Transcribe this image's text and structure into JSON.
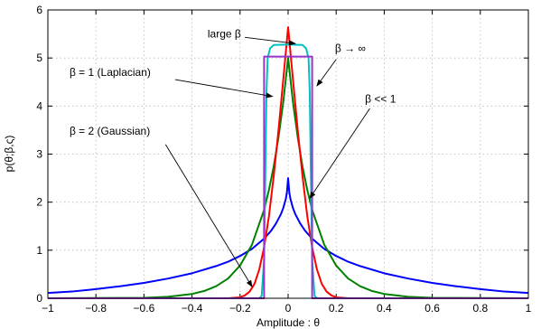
{
  "chart_data": {
    "type": "line",
    "xlabel": "Amplitude : θ",
    "ylabel": "p(θ;β,ς)",
    "xlim": [
      -1,
      1
    ],
    "ylim": [
      0,
      6
    ],
    "grid": true,
    "xticks": [
      -1,
      -0.8,
      -0.6,
      -0.4,
      -0.2,
      0,
      0.2,
      0.4,
      0.6,
      0.8,
      1
    ],
    "xtick_labels": [
      "−1",
      "−0.8",
      "−0.6",
      "−0.4",
      "−0.2",
      "0",
      "0.2",
      "0.4",
      "0.6",
      "0.8",
      "1"
    ],
    "yticks": [
      0,
      1,
      2,
      3,
      4,
      5,
      6
    ],
    "ytick_labels": [
      "0",
      "1",
      "2",
      "3",
      "4",
      "5",
      "6"
    ],
    "series": [
      {
        "color": "#0000ff",
        "points": [
          [
            -1,
            0.11
          ],
          [
            -0.9,
            0.14
          ],
          [
            -0.8,
            0.19
          ],
          [
            -0.7,
            0.25
          ],
          [
            -0.6,
            0.32
          ],
          [
            -0.5,
            0.41
          ],
          [
            -0.4,
            0.52
          ],
          [
            -0.3,
            0.67
          ],
          [
            -0.25,
            0.76
          ],
          [
            -0.2,
            0.88
          ],
          [
            -0.15,
            1.03
          ],
          [
            -0.1,
            1.24
          ],
          [
            -0.07,
            1.41
          ],
          [
            -0.05,
            1.56
          ],
          [
            -0.03,
            1.75
          ],
          [
            -0.02,
            1.88
          ],
          [
            -0.01,
            2.06
          ],
          [
            -0.005,
            2.2
          ],
          [
            0,
            2.5
          ],
          [
            0.005,
            2.2
          ],
          [
            0.01,
            2.06
          ],
          [
            0.02,
            1.88
          ],
          [
            0.03,
            1.75
          ],
          [
            0.05,
            1.56
          ],
          [
            0.07,
            1.41
          ],
          [
            0.1,
            1.24
          ],
          [
            0.15,
            1.03
          ],
          [
            0.2,
            0.88
          ],
          [
            0.25,
            0.76
          ],
          [
            0.3,
            0.67
          ],
          [
            0.4,
            0.52
          ],
          [
            0.5,
            0.41
          ],
          [
            0.6,
            0.32
          ],
          [
            0.7,
            0.25
          ],
          [
            0.8,
            0.19
          ],
          [
            0.9,
            0.14
          ],
          [
            1,
            0.11
          ]
        ]
      },
      {
        "color": "#008000",
        "points": [
          [
            -1,
            0
          ],
          [
            -0.6,
            0.01
          ],
          [
            -0.5,
            0.03
          ],
          [
            -0.4,
            0.09
          ],
          [
            -0.35,
            0.15
          ],
          [
            -0.3,
            0.25
          ],
          [
            -0.25,
            0.41
          ],
          [
            -0.2,
            0.68
          ],
          [
            -0.15,
            1.12
          ],
          [
            -0.1,
            1.84
          ],
          [
            -0.08,
            2.25
          ],
          [
            -0.06,
            2.74
          ],
          [
            -0.04,
            3.35
          ],
          [
            -0.02,
            4.09
          ],
          [
            0,
            5.0
          ],
          [
            0.02,
            4.09
          ],
          [
            0.04,
            3.35
          ],
          [
            0.06,
            2.74
          ],
          [
            0.08,
            2.25
          ],
          [
            0.1,
            1.84
          ],
          [
            0.15,
            1.12
          ],
          [
            0.2,
            0.68
          ],
          [
            0.25,
            0.41
          ],
          [
            0.3,
            0.25
          ],
          [
            0.35,
            0.15
          ],
          [
            0.4,
            0.09
          ],
          [
            0.5,
            0.03
          ],
          [
            0.6,
            0.01
          ],
          [
            1,
            0
          ]
        ]
      },
      {
        "color": "#ff0000",
        "points": [
          [
            -1,
            0
          ],
          [
            -0.25,
            0
          ],
          [
            -0.2,
            0.02
          ],
          [
            -0.18,
            0.06
          ],
          [
            -0.16,
            0.14
          ],
          [
            -0.14,
            0.3
          ],
          [
            -0.12,
            0.6
          ],
          [
            -0.1,
            1.06
          ],
          [
            -0.08,
            1.7
          ],
          [
            -0.06,
            2.54
          ],
          [
            -0.04,
            3.5
          ],
          [
            -0.02,
            4.56
          ],
          [
            0,
            5.64
          ],
          [
            0.02,
            4.56
          ],
          [
            0.04,
            3.5
          ],
          [
            0.06,
            2.54
          ],
          [
            0.08,
            1.7
          ],
          [
            0.1,
            1.06
          ],
          [
            0.12,
            0.6
          ],
          [
            0.14,
            0.3
          ],
          [
            0.16,
            0.14
          ],
          [
            0.18,
            0.06
          ],
          [
            0.2,
            0.02
          ],
          [
            0.25,
            0
          ],
          [
            1,
            0
          ]
        ]
      },
      {
        "color": "#00c0c0",
        "points": [
          [
            -1,
            0
          ],
          [
            -0.12,
            0
          ],
          [
            -0.11,
            0.05
          ],
          [
            -0.1,
            0.8
          ],
          [
            -0.095,
            2.5
          ],
          [
            -0.09,
            4.3
          ],
          [
            -0.085,
            5.0
          ],
          [
            -0.075,
            5.2
          ],
          [
            -0.06,
            5.27
          ],
          [
            0,
            5.28
          ],
          [
            0.06,
            5.27
          ],
          [
            0.075,
            5.2
          ],
          [
            0.085,
            5.0
          ],
          [
            0.09,
            4.3
          ],
          [
            0.095,
            2.5
          ],
          [
            0.1,
            0.8
          ],
          [
            0.11,
            0.05
          ],
          [
            0.12,
            0
          ],
          [
            1,
            0
          ]
        ]
      },
      {
        "color": "#9933cc",
        "points": [
          [
            -1,
            0
          ],
          [
            -0.1,
            0
          ],
          [
            -0.1,
            5.03
          ],
          [
            0.1,
            5.03
          ],
          [
            0.1,
            0
          ],
          [
            1,
            0
          ]
        ]
      }
    ],
    "annotations": [
      {
        "text": "large β",
        "tx": -0.335,
        "ty": 5.43,
        "anchor": "start",
        "ax": -0.18,
        "ay": 5.43,
        "px": 0.03,
        "py": 5.3
      },
      {
        "text": "β → ∞",
        "tx": 0.195,
        "ty": 5.13,
        "anchor": "start",
        "ax": 0.2,
        "ay": 4.97,
        "px": 0.12,
        "py": 4.42
      },
      {
        "text": "β = 1 (Laplacian)",
        "tx": -0.91,
        "ty": 4.63,
        "anchor": "start",
        "ax": -0.47,
        "ay": 4.55,
        "px": -0.065,
        "py": 4.2
      },
      {
        "text": "β = 2 (Gaussian)",
        "tx": -0.91,
        "ty": 3.4,
        "anchor": "start",
        "ax": -0.51,
        "ay": 3.2,
        "px": -0.15,
        "py": 0.24
      },
      {
        "text": "β << 1",
        "tx": 0.32,
        "ty": 4.07,
        "anchor": "start",
        "ax": 0.34,
        "ay": 3.95,
        "px": 0.09,
        "py": 2.08
      }
    ]
  }
}
